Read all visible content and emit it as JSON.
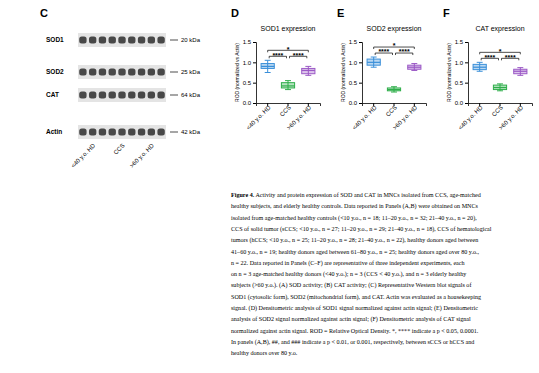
{
  "blot": {
    "label": "C",
    "rows": [
      {
        "name": "SOD1",
        "size": "20 kDa"
      },
      {
        "name": "SOD2",
        "size": "25 kDa"
      },
      {
        "name": "CAT",
        "size": "64 kDa"
      },
      {
        "name": "Actin",
        "size": "42 kDa"
      }
    ],
    "lanes": [
      "<40 y.o. HD",
      "CCS",
      ">60 y.o. HD"
    ]
  },
  "chart_data": [
    {
      "type": "box",
      "label": "D",
      "title": "SOD1 expression",
      "y_label": "ROD (normalized vs Actin)",
      "categories": [
        "<40 y.o. HD",
        "CCS",
        ">60 y.o. HD"
      ],
      "colors": [
        "#3a8fd9",
        "#2fae4a",
        "#9b59c6"
      ],
      "boxes": [
        {
          "min": 0.75,
          "q1": 0.85,
          "median": 0.9,
          "q3": 0.97,
          "max": 1.05
        },
        {
          "min": 0.33,
          "q1": 0.37,
          "median": 0.42,
          "q3": 0.5,
          "max": 0.55
        },
        {
          "min": 0.68,
          "q1": 0.72,
          "median": 0.8,
          "q3": 0.85,
          "max": 0.9
        }
      ],
      "ylim": [
        0,
        1.5
      ],
      "yticks": [
        {
          "value": 0,
          "label": "0.0"
        },
        {
          "value": 0.5,
          "label": "0.5"
        },
        {
          "value": 1,
          "label": "1.0"
        },
        {
          "value": 1.5,
          "label": "1.5"
        }
      ],
      "annotations": [
        {
          "from": 0,
          "to": 2,
          "label": "*"
        },
        {
          "from": 0,
          "to": 1,
          "label": "****"
        },
        {
          "from": 1,
          "to": 2,
          "label": "****"
        }
      ]
    },
    {
      "type": "box",
      "label": "E",
      "title": "SOD2 expression",
      "y_label": "ROD (normalized vs Actin)",
      "categories": [
        "<40 y.o. HD",
        "CCS",
        ">60 y.o. HD"
      ],
      "colors": [
        "#3a8fd9",
        "#2fae4a",
        "#9b59c6"
      ],
      "boxes": [
        {
          "min": 0.88,
          "q1": 0.93,
          "median": 1.0,
          "q3": 1.08,
          "max": 1.13
        },
        {
          "min": 0.27,
          "q1": 0.3,
          "median": 0.33,
          "q3": 0.37,
          "max": 0.4
        },
        {
          "min": 0.8,
          "q1": 0.83,
          "median": 0.88,
          "q3": 0.93,
          "max": 0.97
        }
      ],
      "ylim": [
        0,
        1.5
      ],
      "yticks": [
        {
          "value": 0,
          "label": "0.0"
        },
        {
          "value": 0.5,
          "label": "0.5"
        },
        {
          "value": 1,
          "label": "1.0"
        },
        {
          "value": 1.5,
          "label": "1.5"
        }
      ],
      "annotations": [
        {
          "from": 0,
          "to": 2,
          "label": "*"
        },
        {
          "from": 0,
          "to": 1,
          "label": "****"
        },
        {
          "from": 1,
          "to": 2,
          "label": "****"
        }
      ]
    },
    {
      "type": "box",
      "label": "F",
      "title": "CAT expression",
      "y_label": "ROD (normalized vs Actin)",
      "categories": [
        "<40 y.o. HD",
        "CCS",
        ">60 y.o. HD"
      ],
      "colors": [
        "#3a8fd9",
        "#2fae4a",
        "#9b59c6"
      ],
      "boxes": [
        {
          "min": 0.78,
          "q1": 0.82,
          "median": 0.88,
          "q3": 0.95,
          "max": 1.0
        },
        {
          "min": 0.3,
          "q1": 0.33,
          "median": 0.38,
          "q3": 0.44,
          "max": 0.47
        },
        {
          "min": 0.68,
          "q1": 0.72,
          "median": 0.78,
          "q3": 0.83,
          "max": 0.87
        }
      ],
      "ylim": [
        0,
        1.5
      ],
      "yticks": [
        {
          "value": 0,
          "label": "0.0"
        },
        {
          "value": 0.5,
          "label": "0.5"
        },
        {
          "value": 1,
          "label": "1.0"
        },
        {
          "value": 1.5,
          "label": "1.5"
        }
      ],
      "annotations": [
        {
          "from": 0,
          "to": 2,
          "label": "*"
        },
        {
          "from": 0,
          "to": 1,
          "label": "****"
        },
        {
          "from": 1,
          "to": 2,
          "label": "****"
        }
      ]
    }
  ],
  "caption": {
    "label": "Figure 4.",
    "lines": [
      " Activity and protein expression of SOD and CAT in MNCs isolated from CCS, age-matched",
      "healthy subjects, and elderly healthy controls. Data reported in Panels (A,B) were obtained on MNCs",
      "isolated from age-matched healthy controls (<10 y.o., n = 18; 11–20 y.o., n = 32; 21–40 y.o., n = 20),",
      "CCS of solid tumor (sCCS; <10 y.o., n = 27; 11–20 y.o., n = 29; 21–40 y.o., n = 18), CCS of hematological",
      "tumors (hCCS; <10 y.o., n = 25; 11–20 y.o., n = 28; 21–40 y.o., n = 22), healthy donors aged between",
      "41–60 y.o., n = 19; healthy donors aged between 61–80 y.o., n = 25; healthy donors aged over 80 y.o.,",
      "n = 22. Data reported in Panels (C–F) are representative of three independent experiments, each",
      "on n = 3 age-matched healthy donors (<40 y.o.); n = 3 (CCS < 40 y.o.), and n = 3 elderly healthy",
      "subjects (>60 y.o.). (A) SOD activity; (B) CAT activity; (C) Representative Western blot signals of",
      "SOD1 (cytosolic form), SOD2 (mitochondrial form), and CAT. Actin was evaluated as a housekeeping",
      "signal. (D) Densitometric analysis of SOD1 signal normalized against actin signal; (E) Densitometric",
      "analysis of SOD2 signal normalized against actin signal; (F) Densitometric analysis of CAT signal",
      "normalized against actin signal. ROD = Relative Optical Density. *, **** indicate a p < 0.05, 0.0001.",
      "In panels (A,B), ##, and ### indicate a p < 0.01, or 0.001, respectively, between sCCS or hCCS and",
      "healthy donors over 80 y.o."
    ]
  }
}
